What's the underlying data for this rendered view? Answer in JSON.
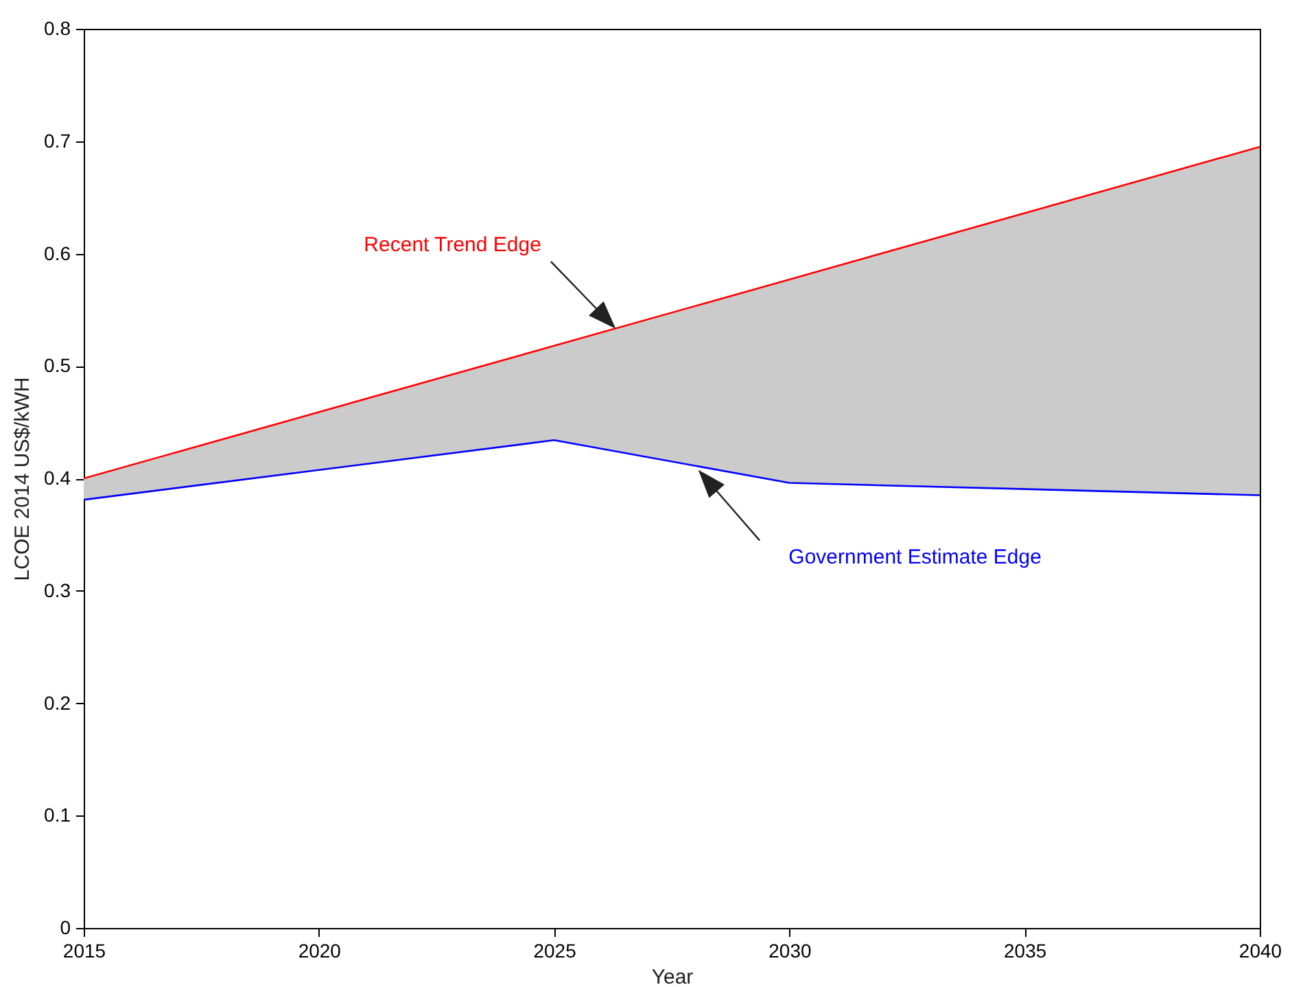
{
  "chart_data": {
    "type": "line",
    "xlabel": "Year",
    "ylabel": "LCOE 2014 US$/kWH",
    "x": [
      2015,
      2025,
      2030,
      2040
    ],
    "series": [
      {
        "type": "line",
        "color": "#ff0000",
        "values": [
          0.4,
          0.518,
          0.577,
          0.695
        ],
        "lower": [
          0.381,
          0.434,
          0.396,
          0.385
        ],
        "upper": [
          0.4,
          0.518,
          0.577,
          0.695
        ]
      },
      {
        "type": "line",
        "color": "#0000ff",
        "values": [
          0.381,
          0.434,
          0.396,
          0.385
        ]
      }
    ],
    "annotations": [
      "Recent Trend Edge",
      "Government Estimate Edge"
    ],
    "xlim": [
      2015,
      2040
    ],
    "xticks": [
      2015,
      2020,
      2025,
      2030,
      2035,
      2040
    ],
    "ylim": [
      0,
      0.8
    ],
    "yticks": [
      0,
      0.1,
      0.2,
      0.3,
      0.4,
      0.5,
      0.6,
      0.7,
      0.8
    ],
    "grid": false
  }
}
